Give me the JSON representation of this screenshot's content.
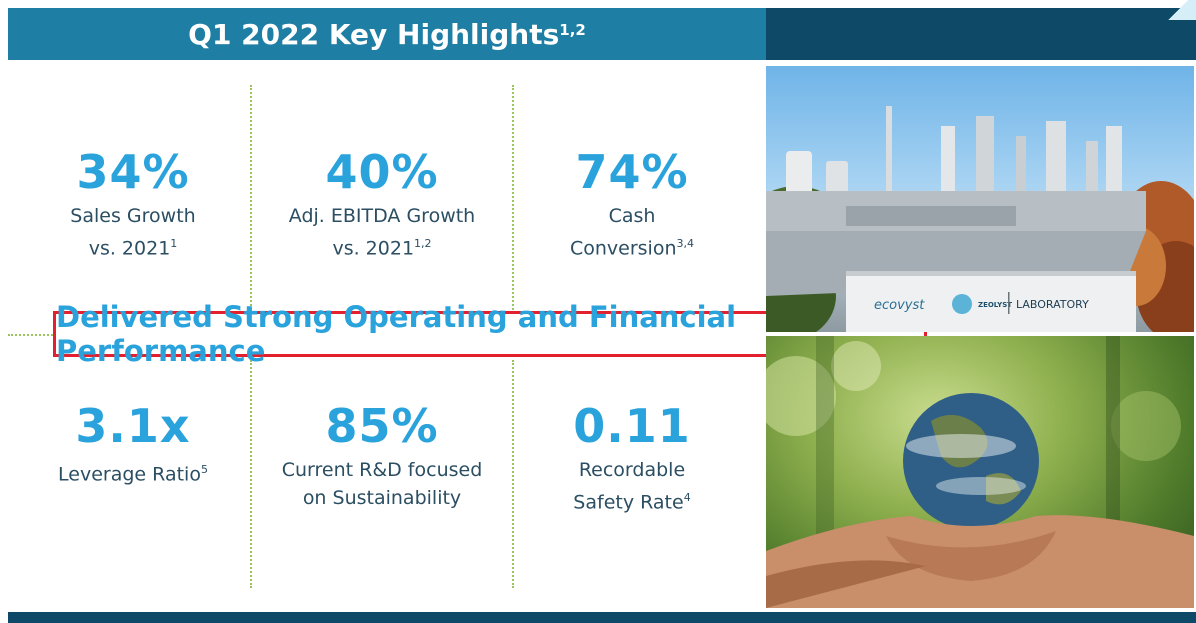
{
  "header": {
    "title": "Q1 2022 Key Highlights",
    "title_sup": "1,2"
  },
  "metrics": [
    {
      "value": "34%",
      "label_line1": "Sales Growth",
      "label_line2": "vs. 2021",
      "label_sup": "1"
    },
    {
      "value": "40%",
      "label_line1": "Adj. EBITDA Growth",
      "label_line2": "vs. 2021",
      "label_sup": "1,2"
    },
    {
      "value": "74%",
      "label_line1": "Cash",
      "label_line2": "Conversion",
      "label_sup": "3,4"
    },
    {
      "value": "3.1x",
      "label_line1": "Leverage Ratio",
      "label_line2": "",
      "label_sup": "5"
    },
    {
      "value": "85%",
      "label_line1": "Current R&D focused",
      "label_line2": "on Sustainability",
      "label_sup": ""
    },
    {
      "value": "0.11",
      "label_line1": "Recordable",
      "label_line2": "Safety Rate",
      "label_sup": "4"
    }
  ],
  "banner": {
    "text": "Delivered Strong Operating and Financial Performance"
  },
  "photos": {
    "plant_sign_brand": "ecovyst",
    "plant_sign_partner": "ZEOLYST",
    "plant_sign_label": "LABORATORY"
  },
  "colors": {
    "header": "#1f7ea3",
    "header_dark": "#0e4a68",
    "metric_value": "#2aa2dc",
    "metric_label": "#2b4e63",
    "divider": "#9cc45c",
    "banner_border": "#e3202d"
  }
}
